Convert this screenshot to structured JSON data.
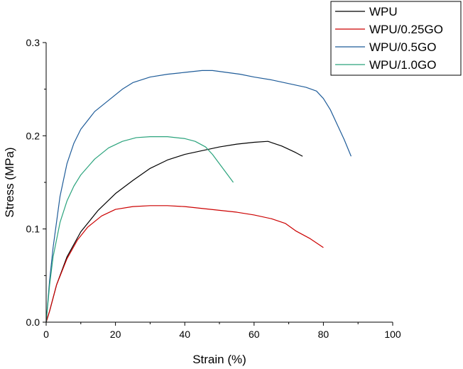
{
  "chart_data": {
    "type": "line",
    "xlabel": "Strain (%)",
    "ylabel": "Stress (MPa)",
    "xlim": [
      0,
      100
    ],
    "ylim": [
      0,
      0.3
    ],
    "x_ticks": [
      "0",
      "20",
      "40",
      "60",
      "80",
      "100"
    ],
    "y_ticks": [
      "0.0",
      "0.1",
      "0.2",
      "0.3"
    ],
    "legend_position": "top-right",
    "grid": false,
    "series": [
      {
        "name": "WPU",
        "color": "#000000",
        "points": [
          [
            0,
            0
          ],
          [
            1,
            0.012
          ],
          [
            3,
            0.04
          ],
          [
            6,
            0.07
          ],
          [
            10,
            0.097
          ],
          [
            15,
            0.12
          ],
          [
            20,
            0.138
          ],
          [
            25,
            0.152
          ],
          [
            30,
            0.165
          ],
          [
            35,
            0.174
          ],
          [
            40,
            0.18
          ],
          [
            45,
            0.184
          ],
          [
            50,
            0.188
          ],
          [
            55,
            0.191
          ],
          [
            60,
            0.193
          ],
          [
            64,
            0.194
          ],
          [
            68,
            0.189
          ],
          [
            72,
            0.182
          ],
          [
            74,
            0.178
          ]
        ]
      },
      {
        "name": "WPU/0.25GO",
        "color": "#cc0000",
        "points": [
          [
            0,
            0
          ],
          [
            1,
            0.012
          ],
          [
            3,
            0.04
          ],
          [
            6,
            0.068
          ],
          [
            9,
            0.088
          ],
          [
            12,
            0.102
          ],
          [
            16,
            0.114
          ],
          [
            20,
            0.121
          ],
          [
            25,
            0.124
          ],
          [
            30,
            0.125
          ],
          [
            35,
            0.125
          ],
          [
            40,
            0.124
          ],
          [
            45,
            0.122
          ],
          [
            50,
            0.12
          ],
          [
            55,
            0.118
          ],
          [
            60,
            0.115
          ],
          [
            65,
            0.111
          ],
          [
            69,
            0.106
          ],
          [
            72,
            0.098
          ],
          [
            76,
            0.09
          ],
          [
            80,
            0.08
          ]
        ]
      },
      {
        "name": "WPU/0.5GO",
        "color": "#1f5c99",
        "points": [
          [
            0,
            0
          ],
          [
            1,
            0.045
          ],
          [
            2,
            0.08
          ],
          [
            4,
            0.135
          ],
          [
            6,
            0.17
          ],
          [
            8,
            0.192
          ],
          [
            10,
            0.207
          ],
          [
            14,
            0.226
          ],
          [
            18,
            0.238
          ],
          [
            22,
            0.25
          ],
          [
            25,
            0.257
          ],
          [
            30,
            0.263
          ],
          [
            35,
            0.266
          ],
          [
            40,
            0.268
          ],
          [
            45,
            0.27
          ],
          [
            48,
            0.27
          ],
          [
            52,
            0.268
          ],
          [
            56,
            0.266
          ],
          [
            60,
            0.263
          ],
          [
            65,
            0.26
          ],
          [
            70,
            0.256
          ],
          [
            75,
            0.252
          ],
          [
            78,
            0.248
          ],
          [
            80,
            0.24
          ],
          [
            82,
            0.228
          ],
          [
            84,
            0.212
          ],
          [
            86,
            0.196
          ],
          [
            88,
            0.178
          ]
        ]
      },
      {
        "name": "WPU/1.0GO",
        "color": "#2aa37c",
        "points": [
          [
            0,
            0
          ],
          [
            1,
            0.04
          ],
          [
            2,
            0.07
          ],
          [
            4,
            0.107
          ],
          [
            6,
            0.13
          ],
          [
            8,
            0.146
          ],
          [
            10,
            0.158
          ],
          [
            14,
            0.175
          ],
          [
            18,
            0.187
          ],
          [
            22,
            0.194
          ],
          [
            26,
            0.198
          ],
          [
            30,
            0.199
          ],
          [
            35,
            0.199
          ],
          [
            40,
            0.197
          ],
          [
            43,
            0.194
          ],
          [
            46,
            0.188
          ],
          [
            48,
            0.18
          ],
          [
            50,
            0.17
          ],
          [
            52,
            0.16
          ],
          [
            54,
            0.15
          ]
        ]
      }
    ]
  }
}
